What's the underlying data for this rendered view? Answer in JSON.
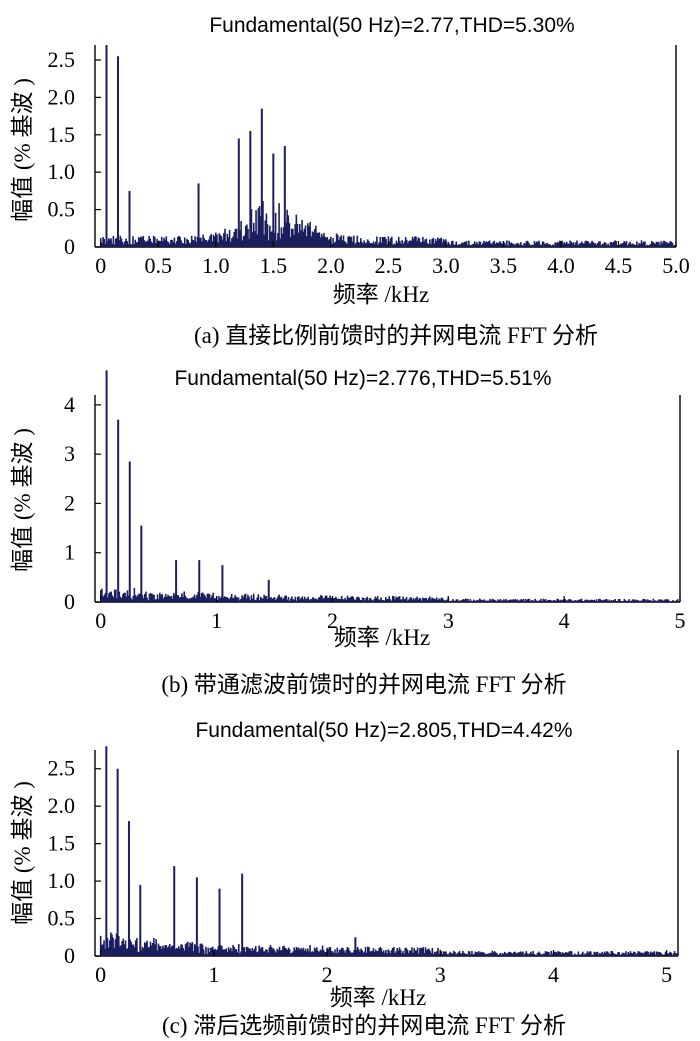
{
  "chart_data": [
    {
      "type": "bar",
      "title": "Fundamental(50 Hz)=2.77,THD=5.30%",
      "xlabel": "频率 /kHz",
      "ylabel": "幅值 (% 基波 )",
      "caption": "(a) 直接比例前馈时的并网电流 FFT 分析",
      "xlim": [
        -0.05,
        5.0
      ],
      "ylim": [
        0,
        2.7
      ],
      "x_ticks": [
        "0",
        "0.5",
        "1.0",
        "1.5",
        "2.0",
        "2.5",
        "3.0",
        "3.5",
        "4.0",
        "4.5",
        "5.0"
      ],
      "y_ticks": [
        "0",
        "0.5",
        "1.0",
        "1.5",
        "2.0",
        "2.5"
      ],
      "peaks": [
        {
          "x": 0.05,
          "y": 2.7
        },
        {
          "x": 0.15,
          "y": 2.55
        },
        {
          "x": 0.25,
          "y": 0.75
        },
        {
          "x": 0.85,
          "y": 0.85
        },
        {
          "x": 1.2,
          "y": 1.45
        },
        {
          "x": 1.3,
          "y": 1.55
        },
        {
          "x": 1.4,
          "y": 1.85
        },
        {
          "x": 1.5,
          "y": 1.25
        },
        {
          "x": 1.6,
          "y": 1.35
        }
      ]
    },
    {
      "type": "bar",
      "title": "Fundamental(50 Hz)=2.776,THD=5.51%",
      "xlabel": "频率 /kHz",
      "ylabel": "幅值 (% 基波 )",
      "caption": "(b) 带通滤波前馈时的并网电流 FFT 分析",
      "xlim": [
        -0.05,
        5.0
      ],
      "ylim": [
        0,
        4.2
      ],
      "x_ticks": [
        "0",
        "1",
        "2",
        "3",
        "4",
        "5"
      ],
      "y_ticks": [
        "0",
        "1",
        "2",
        "3",
        "4"
      ],
      "peaks": [
        {
          "x": 0.05,
          "y": 4.7
        },
        {
          "x": 0.15,
          "y": 3.7
        },
        {
          "x": 0.25,
          "y": 2.85
        },
        {
          "x": 0.35,
          "y": 1.55
        },
        {
          "x": 0.65,
          "y": 0.85
        },
        {
          "x": 0.85,
          "y": 0.85
        },
        {
          "x": 1.05,
          "y": 0.75
        },
        {
          "x": 1.45,
          "y": 0.45
        }
      ]
    },
    {
      "type": "bar",
      "title": "Fundamental(50 Hz)=2.805,THD=4.42%",
      "xlabel": "频率 /kHz",
      "ylabel": "幅值 (% 基波 )",
      "caption": "(c) 滞后选频前馈时的并网电流 FFT 分析",
      "xlim": [
        -0.05,
        5.1
      ],
      "ylim": [
        0,
        2.75
      ],
      "x_ticks": [
        "0",
        "1",
        "2",
        "3",
        "4",
        "5"
      ],
      "y_ticks": [
        "0",
        "0.5",
        "1.0",
        "1.5",
        "2.0",
        "2.5"
      ],
      "peaks": [
        {
          "x": 0.05,
          "y": 2.8
        },
        {
          "x": 0.15,
          "y": 2.5
        },
        {
          "x": 0.25,
          "y": 1.8
        },
        {
          "x": 0.35,
          "y": 0.95
        },
        {
          "x": 0.65,
          "y": 1.2
        },
        {
          "x": 0.85,
          "y": 1.05
        },
        {
          "x": 1.05,
          "y": 0.9
        },
        {
          "x": 1.25,
          "y": 1.1
        },
        {
          "x": 2.25,
          "y": 0.25
        }
      ]
    }
  ]
}
